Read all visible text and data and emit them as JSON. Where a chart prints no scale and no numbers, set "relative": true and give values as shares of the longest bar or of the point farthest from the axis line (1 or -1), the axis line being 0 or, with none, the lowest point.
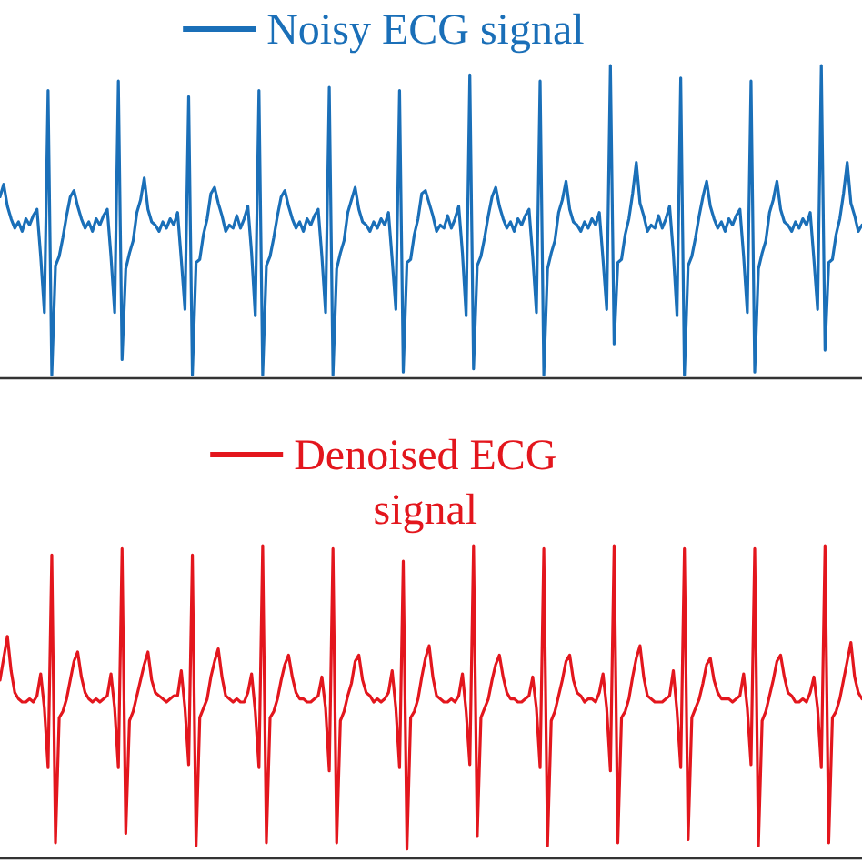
{
  "chart_data": [
    {
      "type": "line",
      "relative": true,
      "legend": "top",
      "categories": [
        null,
        null,
        null,
        null,
        null,
        null,
        null,
        null,
        null,
        null,
        null,
        null,
        null,
        null,
        null,
        null,
        null,
        null,
        null,
        null,
        null,
        null,
        null,
        null,
        null,
        null,
        null,
        null,
        null,
        null,
        null,
        null,
        null,
        null,
        null,
        null,
        null,
        null,
        null,
        null,
        null,
        null,
        null,
        null,
        null,
        null,
        null,
        null,
        null,
        null,
        null,
        null,
        null,
        null,
        null,
        null,
        null,
        null,
        null,
        null,
        null,
        null,
        null,
        null,
        null,
        null,
        null,
        null,
        null,
        null,
        null,
        null,
        null,
        null,
        null,
        null,
        null,
        null,
        null,
        null,
        null,
        null,
        null,
        null,
        null,
        null,
        null,
        null,
        null,
        null,
        null,
        null,
        null,
        null,
        null,
        null,
        null,
        null,
        null,
        null,
        null,
        null,
        null,
        null,
        null,
        null,
        null,
        null,
        null,
        null,
        null,
        null,
        null,
        null,
        null,
        null,
        null,
        null,
        null,
        null,
        null,
        null,
        null,
        null,
        null,
        null,
        null,
        null,
        null,
        null,
        null,
        null,
        null,
        null,
        null,
        null,
        null,
        null,
        null,
        null,
        null,
        null,
        null,
        null,
        null,
        null,
        null,
        null,
        null,
        null,
        null,
        null,
        null,
        null,
        null,
        null,
        null,
        null,
        null,
        null,
        null,
        null,
        null,
        null,
        null,
        null,
        null,
        null,
        null,
        null,
        null,
        null,
        null,
        null,
        null,
        null,
        null,
        null,
        null,
        null,
        null,
        null,
        null,
        null,
        null,
        null,
        null,
        null,
        null,
        null,
        null,
        null,
        null,
        null,
        null,
        null,
        null,
        null,
        null,
        null,
        null,
        null,
        null,
        null,
        null,
        null,
        null,
        null,
        null,
        null,
        null,
        null,
        null,
        null,
        null,
        null,
        null,
        null,
        null,
        null,
        null,
        null,
        null,
        null,
        null,
        null,
        null,
        null,
        null,
        null,
        null,
        null,
        null,
        null
      ],
      "series": [
        {
          "name": "Noisy ECG signal",
          "color": "#1a6fb8",
          "values": [
            0.58,
            0.62,
            0.55,
            0.51,
            0.48,
            0.5,
            0.47,
            0.51,
            0.49,
            0.52,
            0.54,
            0.39,
            0.21,
            0.92,
            0.01,
            0.36,
            0.39,
            0.45,
            0.52,
            0.58,
            0.6,
            0.55,
            0.51,
            0.48,
            0.5,
            0.47,
            0.51,
            0.49,
            0.52,
            0.54,
            0.39,
            0.21,
            0.95,
            0.06,
            0.35,
            0.4,
            0.44,
            0.53,
            0.57,
            0.64,
            0.54,
            0.5,
            0.49,
            0.47,
            0.5,
            0.48,
            0.51,
            0.49,
            0.53,
            0.38,
            0.22,
            0.9,
            0.01,
            0.37,
            0.38,
            0.46,
            0.51,
            0.59,
            0.61,
            0.56,
            0.52,
            0.47,
            0.49,
            0.48,
            0.52,
            0.48,
            0.51,
            0.55,
            0.4,
            0.2,
            0.92,
            0.01,
            0.36,
            0.39,
            0.45,
            0.52,
            0.58,
            0.6,
            0.55,
            0.51,
            0.48,
            0.5,
            0.47,
            0.51,
            0.49,
            0.52,
            0.54,
            0.39,
            0.21,
            0.93,
            0.01,
            0.35,
            0.4,
            0.44,
            0.53,
            0.57,
            0.61,
            0.54,
            0.5,
            0.49,
            0.47,
            0.5,
            0.48,
            0.51,
            0.49,
            0.53,
            0.38,
            0.22,
            0.92,
            0.02,
            0.37,
            0.38,
            0.46,
            0.51,
            0.59,
            0.6,
            0.56,
            0.52,
            0.47,
            0.49,
            0.48,
            0.52,
            0.48,
            0.51,
            0.55,
            0.4,
            0.2,
            0.97,
            0.03,
            0.36,
            0.39,
            0.45,
            0.52,
            0.58,
            0.61,
            0.55,
            0.51,
            0.48,
            0.5,
            0.47,
            0.51,
            0.49,
            0.52,
            0.54,
            0.39,
            0.21,
            0.95,
            0.01,
            0.35,
            0.4,
            0.44,
            0.53,
            0.57,
            0.63,
            0.54,
            0.5,
            0.49,
            0.47,
            0.5,
            0.48,
            0.51,
            0.49,
            0.53,
            0.38,
            0.22,
            1.0,
            0.11,
            0.37,
            0.38,
            0.46,
            0.51,
            0.59,
            0.69,
            0.56,
            0.52,
            0.47,
            0.49,
            0.48,
            0.52,
            0.48,
            0.51,
            0.55,
            0.4,
            0.2,
            0.96,
            0.01,
            0.36,
            0.39,
            0.45,
            0.52,
            0.58,
            0.63,
            0.55,
            0.51,
            0.48,
            0.5,
            0.47,
            0.51,
            0.49,
            0.52,
            0.54,
            0.39,
            0.21,
            0.95,
            0.02,
            0.35,
            0.4,
            0.44,
            0.53,
            0.57,
            0.63,
            0.54,
            0.5,
            0.49,
            0.47,
            0.5,
            0.48,
            0.51,
            0.49,
            0.53,
            0.38,
            0.22,
            1.0,
            0.09,
            0.37,
            0.38,
            0.46,
            0.51,
            0.59,
            0.69,
            0.56,
            0.52,
            0.47,
            0.49
          ]
        }
      ]
    },
    {
      "type": "line",
      "relative": true,
      "legend": "top",
      "categories": [
        null,
        null,
        null,
        null,
        null,
        null,
        null,
        null,
        null,
        null,
        null,
        null,
        null,
        null,
        null,
        null,
        null,
        null,
        null,
        null,
        null,
        null,
        null,
        null,
        null,
        null,
        null,
        null,
        null,
        null,
        null,
        null,
        null,
        null,
        null,
        null,
        null,
        null,
        null,
        null,
        null,
        null,
        null,
        null,
        null,
        null,
        null,
        null,
        null,
        null,
        null,
        null,
        null,
        null,
        null,
        null,
        null,
        null,
        null,
        null,
        null,
        null,
        null,
        null,
        null,
        null,
        null,
        null,
        null,
        null,
        null,
        null,
        null,
        null,
        null,
        null,
        null,
        null,
        null,
        null,
        null,
        null,
        null,
        null,
        null,
        null,
        null,
        null,
        null,
        null,
        null,
        null,
        null,
        null,
        null,
        null,
        null,
        null,
        null,
        null,
        null,
        null,
        null,
        null,
        null,
        null,
        null,
        null,
        null,
        null,
        null,
        null,
        null,
        null,
        null,
        null,
        null,
        null,
        null,
        null,
        null,
        null,
        null,
        null,
        null,
        null,
        null,
        null,
        null,
        null,
        null,
        null,
        null,
        null,
        null,
        null,
        null,
        null,
        null,
        null,
        null,
        null,
        null,
        null,
        null,
        null,
        null,
        null,
        null,
        null,
        null,
        null,
        null,
        null,
        null,
        null,
        null,
        null,
        null,
        null,
        null,
        null,
        null,
        null,
        null,
        null,
        null,
        null,
        null,
        null,
        null,
        null,
        null,
        null,
        null,
        null,
        null,
        null,
        null,
        null,
        null,
        null,
        null,
        null,
        null,
        null,
        null,
        null,
        null,
        null,
        null,
        null,
        null,
        null,
        null,
        null,
        null,
        null,
        null,
        null,
        null,
        null,
        null,
        null,
        null,
        null,
        null,
        null,
        null,
        null,
        null,
        null,
        null,
        null,
        null,
        null,
        null,
        null,
        null,
        null,
        null,
        null,
        null,
        null,
        null,
        null,
        null,
        null,
        null,
        null,
        null,
        null,
        null,
        null
      ],
      "series": [
        {
          "name": "Denoised ECG signal",
          "color": "#e3161d",
          "values": [
            0.57,
            0.64,
            0.71,
            0.6,
            0.53,
            0.51,
            0.5,
            0.5,
            0.51,
            0.5,
            0.52,
            0.59,
            0.48,
            0.29,
            0.97,
            0.05,
            0.45,
            0.47,
            0.51,
            0.57,
            0.63,
            0.66,
            0.58,
            0.53,
            0.51,
            0.5,
            0.51,
            0.5,
            0.51,
            0.52,
            0.59,
            0.48,
            0.29,
            0.99,
            0.08,
            0.44,
            0.47,
            0.52,
            0.57,
            0.62,
            0.66,
            0.57,
            0.53,
            0.52,
            0.51,
            0.5,
            0.51,
            0.52,
            0.52,
            0.6,
            0.48,
            0.3,
            0.97,
            0.04,
            0.45,
            0.48,
            0.51,
            0.58,
            0.63,
            0.67,
            0.58,
            0.52,
            0.51,
            0.5,
            0.51,
            0.5,
            0.5,
            0.53,
            0.59,
            0.47,
            0.29,
            1.0,
            0.05,
            0.45,
            0.47,
            0.51,
            0.57,
            0.62,
            0.65,
            0.58,
            0.53,
            0.51,
            0.51,
            0.5,
            0.5,
            0.51,
            0.52,
            0.58,
            0.48,
            0.28,
            0.99,
            0.05,
            0.44,
            0.47,
            0.52,
            0.56,
            0.63,
            0.65,
            0.57,
            0.53,
            0.52,
            0.5,
            0.51,
            0.5,
            0.51,
            0.53,
            0.6,
            0.48,
            0.29,
            0.95,
            0.03,
            0.45,
            0.47,
            0.51,
            0.58,
            0.64,
            0.68,
            0.58,
            0.52,
            0.51,
            0.5,
            0.5,
            0.51,
            0.5,
            0.52,
            0.59,
            0.47,
            0.3,
            1.0,
            0.07,
            0.45,
            0.48,
            0.51,
            0.57,
            0.62,
            0.65,
            0.58,
            0.53,
            0.51,
            0.51,
            0.5,
            0.5,
            0.51,
            0.52,
            0.58,
            0.48,
            0.29,
            0.99,
            0.04,
            0.44,
            0.47,
            0.52,
            0.57,
            0.63,
            0.65,
            0.57,
            0.53,
            0.52,
            0.5,
            0.51,
            0.51,
            0.5,
            0.53,
            0.59,
            0.48,
            0.28,
            1.0,
            0.05,
            0.45,
            0.47,
            0.51,
            0.58,
            0.64,
            0.68,
            0.58,
            0.52,
            0.51,
            0.5,
            0.5,
            0.5,
            0.51,
            0.52,
            0.6,
            0.47,
            0.29,
            0.99,
            0.06,
            0.45,
            0.48,
            0.51,
            0.56,
            0.62,
            0.64,
            0.57,
            0.53,
            0.51,
            0.51,
            0.51,
            0.5,
            0.51,
            0.52,
            0.59,
            0.48,
            0.3,
            0.99,
            0.04,
            0.44,
            0.47,
            0.52,
            0.57,
            0.63,
            0.65,
            0.58,
            0.53,
            0.52,
            0.5,
            0.5,
            0.51,
            0.5,
            0.53,
            0.58,
            0.48,
            0.29,
            1.0,
            0.05,
            0.45,
            0.47,
            0.51,
            0.57,
            0.63,
            0.69,
            0.58,
            0.53,
            0.51
          ]
        }
      ]
    }
  ]
}
